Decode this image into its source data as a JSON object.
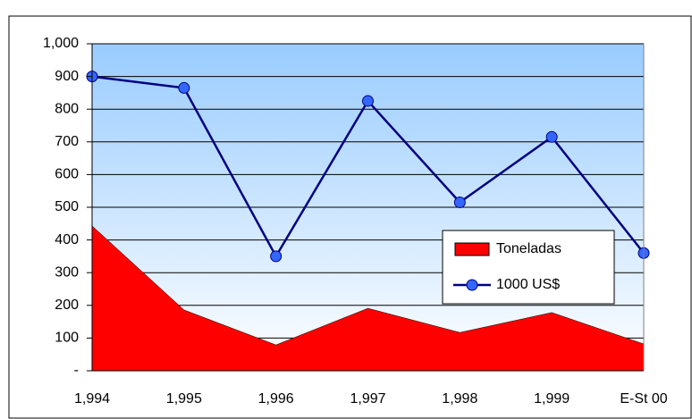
{
  "chart_data": {
    "type": "area-line",
    "categories": [
      "1,994",
      "1,995",
      "1,996",
      "1,997",
      "1,998",
      "1,999",
      "E-St 00"
    ],
    "series": [
      {
        "name": "Toneladas",
        "type": "area",
        "color": "#ff0000",
        "values": [
          443,
          186,
          79,
          191,
          117,
          178,
          82
        ]
      },
      {
        "name": "1000 US$",
        "type": "line",
        "color": "#000080",
        "values": [
          900,
          865,
          350,
          825,
          515,
          715,
          360
        ]
      }
    ],
    "ylim": [
      0,
      1000
    ],
    "yticks": [
      {
        "value": 0,
        "label": "-"
      },
      100,
      200,
      300,
      400,
      500,
      600,
      700,
      800,
      900,
      {
        "value": 1000,
        "label": "1,000"
      }
    ],
    "grid": true,
    "legend": "lower right"
  }
}
